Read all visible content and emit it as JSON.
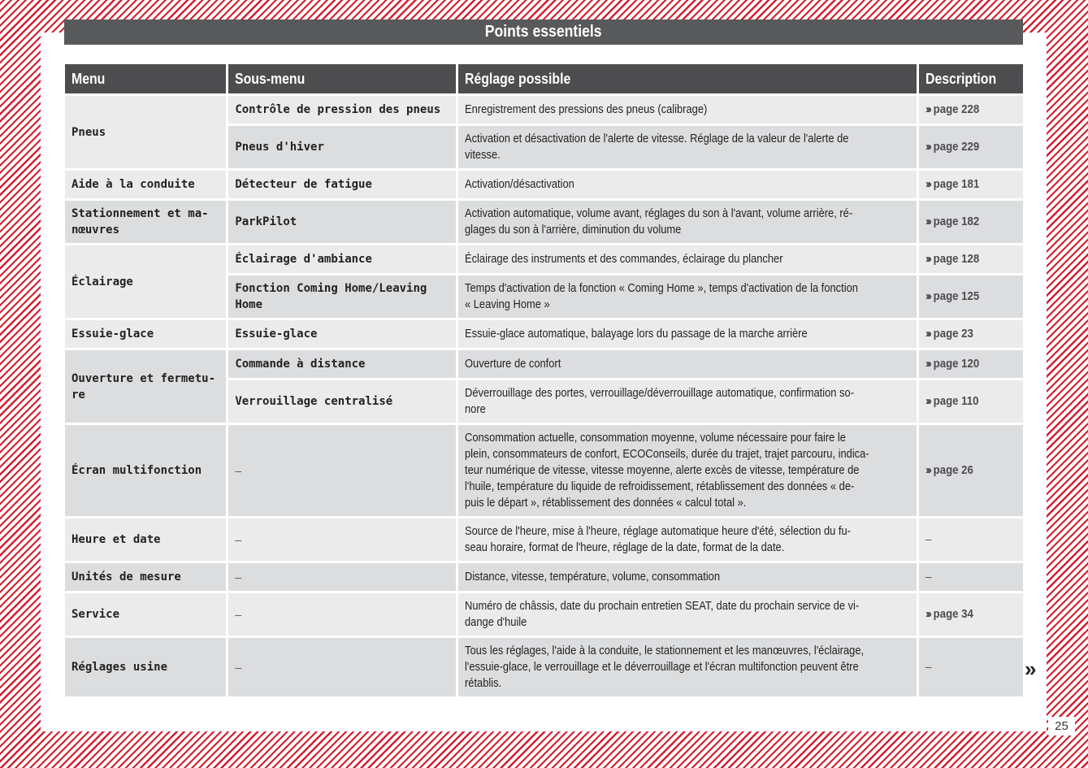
{
  "page": {
    "title": "Points essentiels",
    "page_number": "25",
    "continue_mark": "»",
    "stripe_color": "#d42030"
  },
  "table": {
    "headers": [
      "Menu",
      "Sous-menu",
      "Réglage possible",
      "Description"
    ],
    "ref_icon": "triple-chevron-right-icon",
    "groups": [
      {
        "menu": "Pneus",
        "rows": [
          {
            "sub": "Contrôle de pression des pneus",
            "setting": "Enregistrement des pressions des pneus (calibrage)",
            "ref": "page 228"
          },
          {
            "sub": "Pneus d'hiver",
            "setting": "Activation et désactivation de l'alerte de vitesse. Réglage de la valeur de l'alerte de\nvitesse.",
            "ref": "page 229"
          }
        ]
      },
      {
        "menu": "Aide à la conduite",
        "rows": [
          {
            "sub": "Détecteur de fatigue",
            "setting": "Activation/désactivation",
            "ref": "page 181"
          }
        ]
      },
      {
        "menu": "Stationnement et ma-\nnœuvres",
        "rows": [
          {
            "sub": "ParkPilot",
            "setting": "Activation automatique, volume avant, réglages du son à l'avant, volume arrière, ré-\nglages du son à l'arrière, diminution du volume",
            "ref": "page 182"
          }
        ]
      },
      {
        "menu": "Éclairage",
        "rows": [
          {
            "sub": "Éclairage d'ambiance",
            "setting": "Éclairage des instruments et des commandes, éclairage du plancher",
            "ref": "page 128"
          },
          {
            "sub": "Fonction Coming Home/Leaving\nHome",
            "setting": "Temps d'activation de la fonction « Coming Home », temps d'activation de la fonction\n« Leaving Home »",
            "ref": "page 125"
          }
        ]
      },
      {
        "menu": "Essuie-glace",
        "rows": [
          {
            "sub": "Essuie-glace",
            "setting": "Essuie-glace automatique, balayage lors du passage de la marche arrière",
            "ref": "page 23"
          }
        ]
      },
      {
        "menu": "Ouverture et fermetu-\nre",
        "rows": [
          {
            "sub": "Commande à distance",
            "setting": "Ouverture de confort",
            "ref": "page 120"
          },
          {
            "sub": "Verrouillage centralisé",
            "setting": "Déverrouillage des portes, verrouillage/déverrouillage automatique, confirmation so-\nnore",
            "ref": "page 110"
          }
        ]
      },
      {
        "menu": "Écran multifonction",
        "rows": [
          {
            "sub": "–",
            "setting": "Consommation actuelle, consommation moyenne, volume nécessaire pour faire le\nplein, consommateurs de confort, ECOConseils, durée du trajet, trajet parcouru, indica-\nteur numérique de vitesse, vitesse moyenne, alerte excès de vitesse, température de\nl'huile, température du liquide de refroidissement, rétablissement des données « de-\npuis le départ », rétablissement des données « calcul total ».",
            "ref": "page 26"
          }
        ]
      },
      {
        "menu": "Heure et date",
        "rows": [
          {
            "sub": "–",
            "setting": "Source de l'heure, mise à l'heure, réglage automatique heure d'été, sélection du fu-\nseau horaire, format de l'heure, réglage de la date, format de la date.",
            "ref": "–"
          }
        ]
      },
      {
        "menu": "Unités de mesure",
        "rows": [
          {
            "sub": "–",
            "setting": "Distance, vitesse, température, volume, consommation",
            "ref": "–"
          }
        ]
      },
      {
        "menu": "Service",
        "rows": [
          {
            "sub": "–",
            "setting": "Numéro de châssis, date du prochain entretien SEAT, date du prochain service de vi-\ndange d'huile",
            "ref": "page 34"
          }
        ]
      },
      {
        "menu": "Réglages usine",
        "rows": [
          {
            "sub": "–",
            "setting": "Tous les réglages, l'aide à la conduite, le stationnement et les manœuvres, l'éclairage,\nl'essuie-glace, le verrouillage et le déverrouillage et l'écran multifonction peuvent être\nrétablis.",
            "ref": "–"
          }
        ]
      }
    ]
  }
}
